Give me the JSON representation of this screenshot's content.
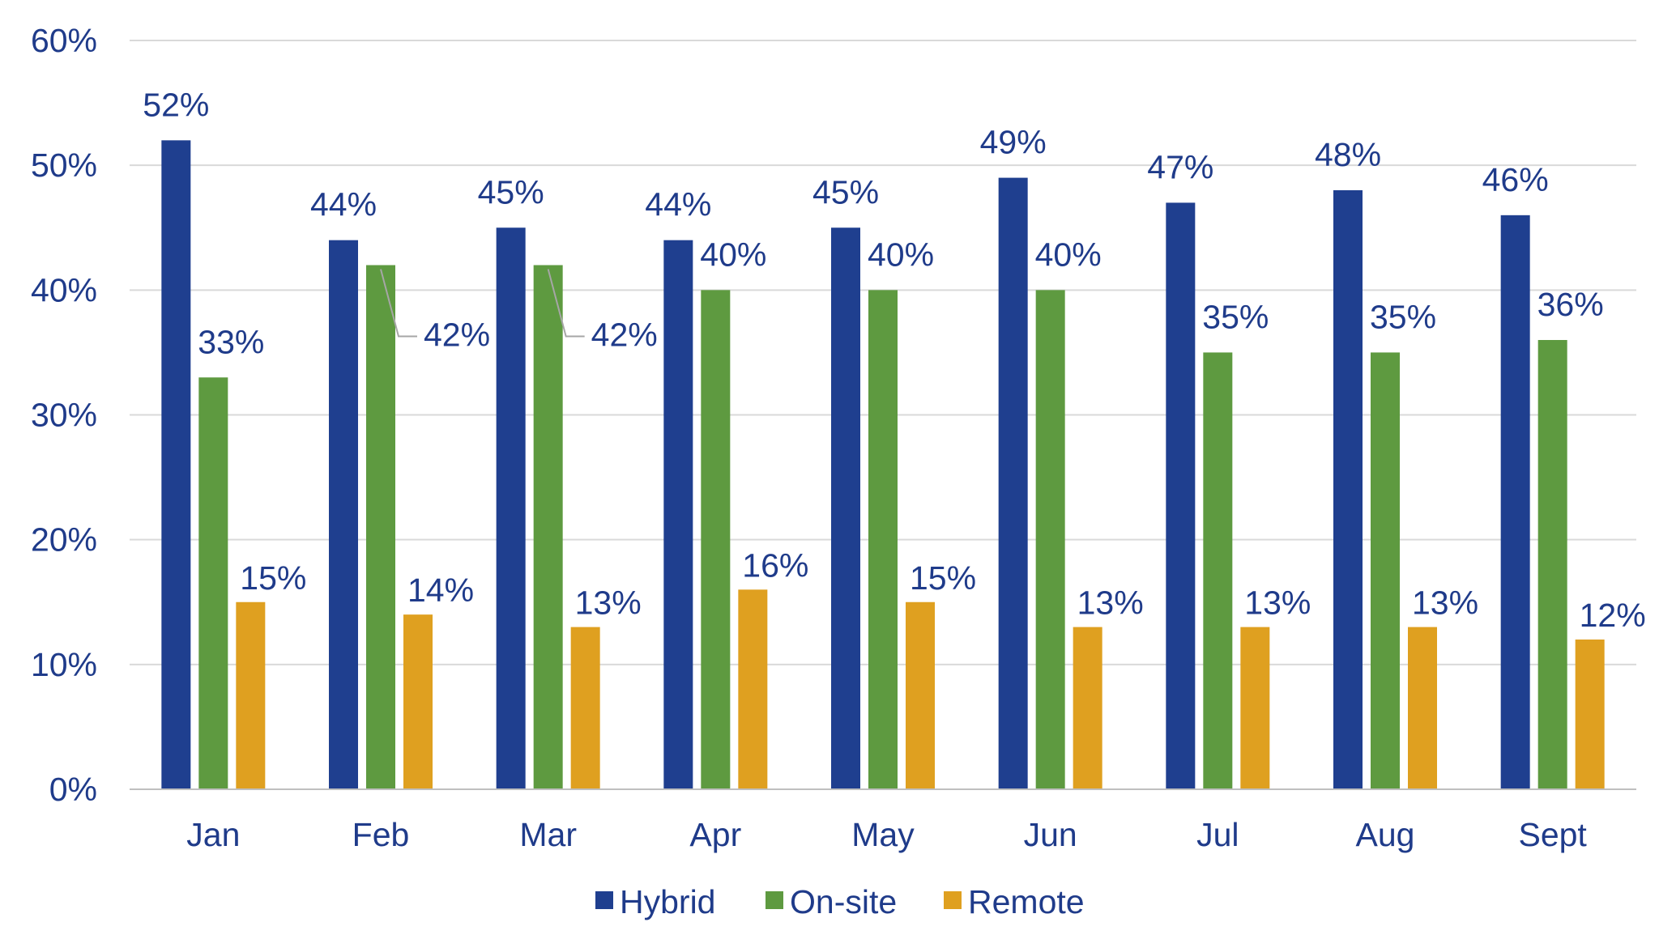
{
  "chart_data": {
    "type": "bar",
    "categories": [
      "Jan",
      "Feb",
      "Mar",
      "Apr",
      "May",
      "Jun",
      "Jul",
      "Aug",
      "Sept"
    ],
    "series": [
      {
        "name": "Hybrid",
        "color": "#1f3f8f",
        "values": [
          52,
          44,
          45,
          44,
          45,
          49,
          47,
          48,
          46
        ],
        "labels": [
          "52%",
          "44%",
          "45%",
          "44%",
          "45%",
          "49%",
          "47%",
          "48%",
          "46%"
        ]
      },
      {
        "name": "On-site",
        "color": "#5e9a40",
        "values": [
          33,
          42,
          42,
          40,
          40,
          40,
          35,
          35,
          36
        ],
        "labels": [
          "33%",
          "42%",
          "42%",
          "40%",
          "40%",
          "40%",
          "35%",
          "35%",
          "36%"
        ]
      },
      {
        "name": "Remote",
        "color": "#dfa020",
        "values": [
          15,
          14,
          13,
          16,
          15,
          13,
          13,
          13,
          12
        ],
        "labels": [
          "15%",
          "14%",
          "13%",
          "16%",
          "15%",
          "13%",
          "13%",
          "13%",
          "12%"
        ]
      }
    ],
    "yticks": [
      "0%",
      "10%",
      "20%",
      "30%",
      "40%",
      "50%",
      "60%"
    ],
    "ylim": [
      0,
      60
    ],
    "grid": true,
    "legend_position": "bottom"
  }
}
